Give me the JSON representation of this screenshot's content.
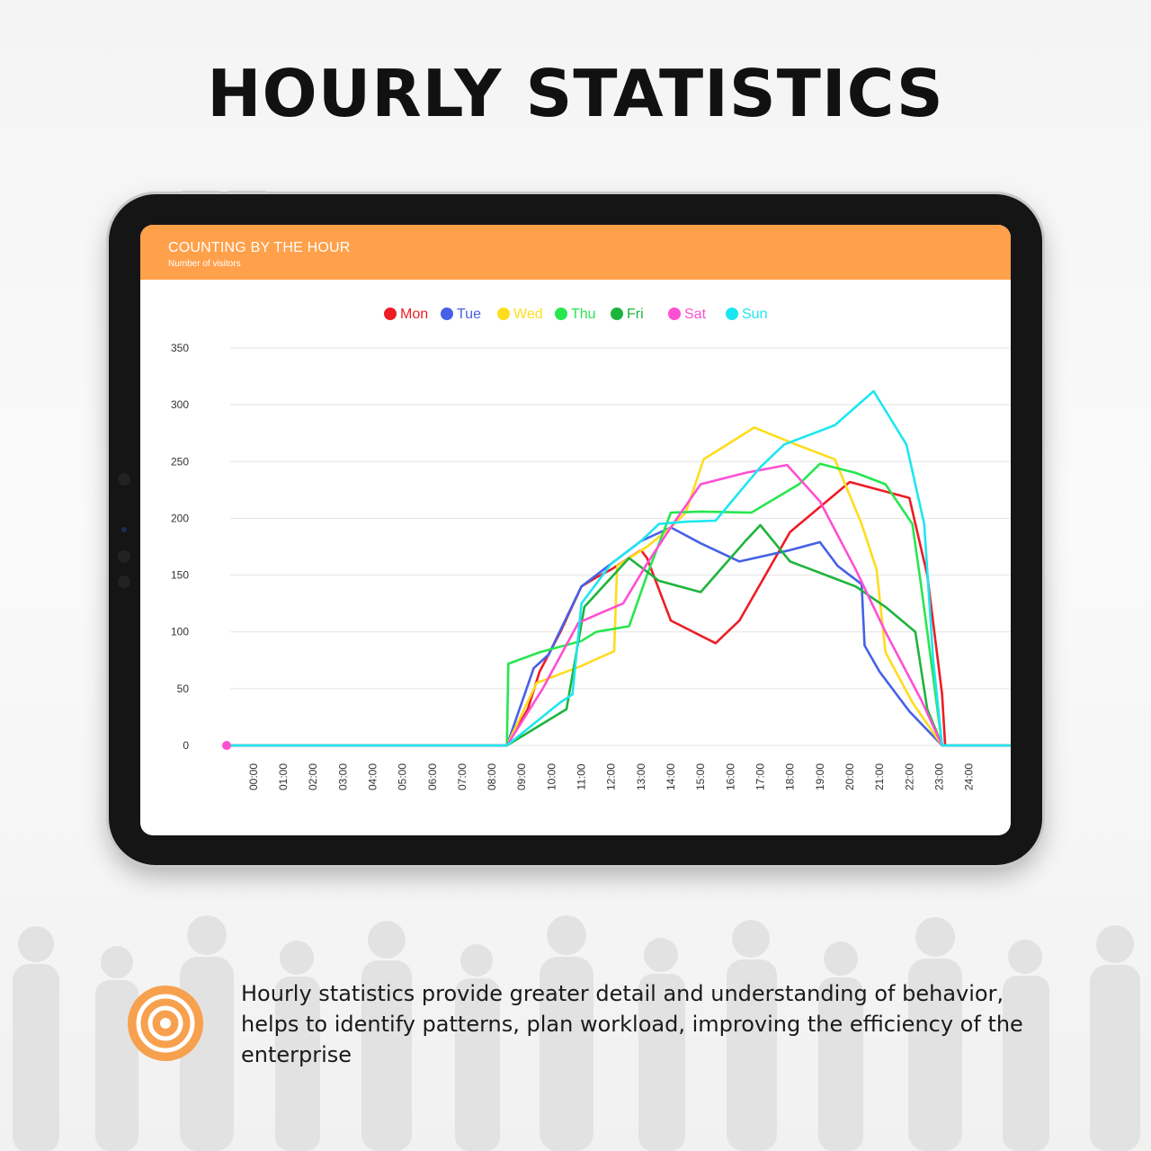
{
  "headline": "HOURLY STATISTICS",
  "panel": {
    "title": "COUNTING BY THE HOUR",
    "subtitle": "Number of visitors"
  },
  "description": "Hourly statistics provide greater detail and understanding of behavior, helps to identify patterns, plan workload, improving the efficiency of the enterprise",
  "icons": {
    "info": "target-icon"
  },
  "colors": {
    "header": "#ffa04b",
    "icon": "#f7a04e"
  },
  "chart_data": {
    "type": "line",
    "title": "",
    "xlabel": "",
    "ylabel": "",
    "x_ticks": [
      "00:00",
      "01:00",
      "02:00",
      "03:00",
      "04:00",
      "05:00",
      "06:00",
      "07:00",
      "08:00",
      "09:00",
      "10:00",
      "11:00",
      "12:00",
      "13:00",
      "14:00",
      "15:00",
      "16:00",
      "17:00",
      "18:00",
      "19:00",
      "20:00",
      "21:00",
      "22:00",
      "23:00",
      "24:00"
    ],
    "xlim": [
      -0.9,
      25.4
    ],
    "ylim": [
      0,
      350
    ],
    "y_ticks": [
      0,
      50,
      100,
      150,
      200,
      250,
      300,
      350
    ],
    "grid": true,
    "legend_position": "top-center",
    "series": [
      {
        "name": "Mon",
        "color": "#ee1c25",
        "points": [
          [
            -0.9,
            0
          ],
          [
            8.5,
            0
          ],
          [
            9.2,
            32
          ],
          [
            9.6,
            65
          ],
          [
            10.3,
            100
          ],
          [
            11.0,
            140
          ],
          [
            11.5,
            148
          ],
          [
            12.0,
            155
          ],
          [
            13.0,
            172
          ],
          [
            13.2,
            165
          ],
          [
            14.0,
            110
          ],
          [
            15.5,
            90
          ],
          [
            16.3,
            110
          ],
          [
            18.0,
            188
          ],
          [
            20.0,
            232
          ],
          [
            22.0,
            218
          ],
          [
            22.6,
            150
          ],
          [
            23.1,
            45
          ],
          [
            23.2,
            0
          ],
          [
            25.4,
            0
          ]
        ]
      },
      {
        "name": "Tue",
        "color": "#4661e6",
        "points": [
          [
            -0.9,
            0
          ],
          [
            8.5,
            0
          ],
          [
            9.4,
            68
          ],
          [
            9.9,
            80
          ],
          [
            11.0,
            140
          ],
          [
            12.0,
            160
          ],
          [
            13.0,
            180
          ],
          [
            14.0,
            192
          ],
          [
            15.0,
            178
          ],
          [
            16.3,
            162
          ],
          [
            18.0,
            172
          ],
          [
            19.0,
            179
          ],
          [
            19.6,
            158
          ],
          [
            20.4,
            142
          ],
          [
            20.5,
            88
          ],
          [
            21.0,
            65
          ],
          [
            22.0,
            30
          ],
          [
            23.1,
            0
          ],
          [
            25.4,
            0
          ]
        ]
      },
      {
        "name": "Wed",
        "color": "#ffdc1e",
        "points": [
          [
            -0.9,
            0
          ],
          [
            8.5,
            0
          ],
          [
            9.5,
            55
          ],
          [
            10.0,
            60
          ],
          [
            11.0,
            70
          ],
          [
            11.5,
            76
          ],
          [
            12.1,
            83
          ],
          [
            12.2,
            158
          ],
          [
            13.2,
            175
          ],
          [
            14.0,
            192
          ],
          [
            14.5,
            205
          ],
          [
            15.1,
            252
          ],
          [
            16.8,
            280
          ],
          [
            18.1,
            266
          ],
          [
            19.5,
            252
          ],
          [
            20.4,
            195
          ],
          [
            20.9,
            155
          ],
          [
            21.2,
            82
          ],
          [
            22.1,
            38
          ],
          [
            23.1,
            0
          ],
          [
            25.4,
            0
          ]
        ]
      },
      {
        "name": "Thu",
        "color": "#28e650",
        "points": [
          [
            -0.9,
            0
          ],
          [
            8.5,
            0
          ],
          [
            8.55,
            72
          ],
          [
            9.6,
            82
          ],
          [
            11.0,
            92
          ],
          [
            11.5,
            100
          ],
          [
            12.6,
            105
          ],
          [
            13.2,
            150
          ],
          [
            14.0,
            205
          ],
          [
            15.0,
            206
          ],
          [
            16.7,
            205
          ],
          [
            18.3,
            230
          ],
          [
            19.0,
            248
          ],
          [
            20.2,
            240
          ],
          [
            21.2,
            230
          ],
          [
            22.1,
            195
          ],
          [
            22.4,
            140
          ],
          [
            22.6,
            100
          ],
          [
            23.1,
            0
          ],
          [
            25.4,
            0
          ]
        ]
      },
      {
        "name": "Fri",
        "color": "#1eb43c",
        "points": [
          [
            -0.9,
            0
          ],
          [
            8.5,
            0
          ],
          [
            10.5,
            32
          ],
          [
            11.1,
            122
          ],
          [
            12.6,
            165
          ],
          [
            13.6,
            145
          ],
          [
            15.0,
            135
          ],
          [
            16.5,
            180
          ],
          [
            17.0,
            194
          ],
          [
            18.0,
            162
          ],
          [
            19.0,
            152
          ],
          [
            20.2,
            140
          ],
          [
            21.2,
            122
          ],
          [
            22.2,
            100
          ],
          [
            22.6,
            32
          ],
          [
            23.1,
            0
          ],
          [
            25.4,
            0
          ]
        ]
      },
      {
        "name": "Sat",
        "color": "#ff4fd2",
        "points": [
          [
            -0.9,
            0
          ],
          [
            8.5,
            0
          ],
          [
            9.7,
            50
          ],
          [
            10.9,
            108
          ],
          [
            11.5,
            115
          ],
          [
            12.4,
            125
          ],
          [
            13.2,
            160
          ],
          [
            14.0,
            192
          ],
          [
            15.0,
            230
          ],
          [
            16.5,
            240
          ],
          [
            17.9,
            247
          ],
          [
            19.0,
            215
          ],
          [
            20.2,
            155
          ],
          [
            21.2,
            100
          ],
          [
            22.4,
            40
          ],
          [
            23.1,
            0
          ],
          [
            25.4,
            0
          ]
        ]
      },
      {
        "name": "Sun",
        "color": "#1ee6f0",
        "points": [
          [
            -0.9,
            0
          ],
          [
            8.5,
            0
          ],
          [
            10.3,
            38
          ],
          [
            10.7,
            45
          ],
          [
            11.0,
            125
          ],
          [
            12.0,
            160
          ],
          [
            13.0,
            180
          ],
          [
            13.6,
            195
          ],
          [
            14.5,
            197
          ],
          [
            15.5,
            198
          ],
          [
            17.0,
            245
          ],
          [
            17.8,
            265
          ],
          [
            19.5,
            282
          ],
          [
            20.8,
            312
          ],
          [
            21.9,
            265
          ],
          [
            22.5,
            195
          ],
          [
            22.8,
            75
          ],
          [
            23.1,
            0
          ],
          [
            25.4,
            0
          ]
        ]
      }
    ]
  }
}
